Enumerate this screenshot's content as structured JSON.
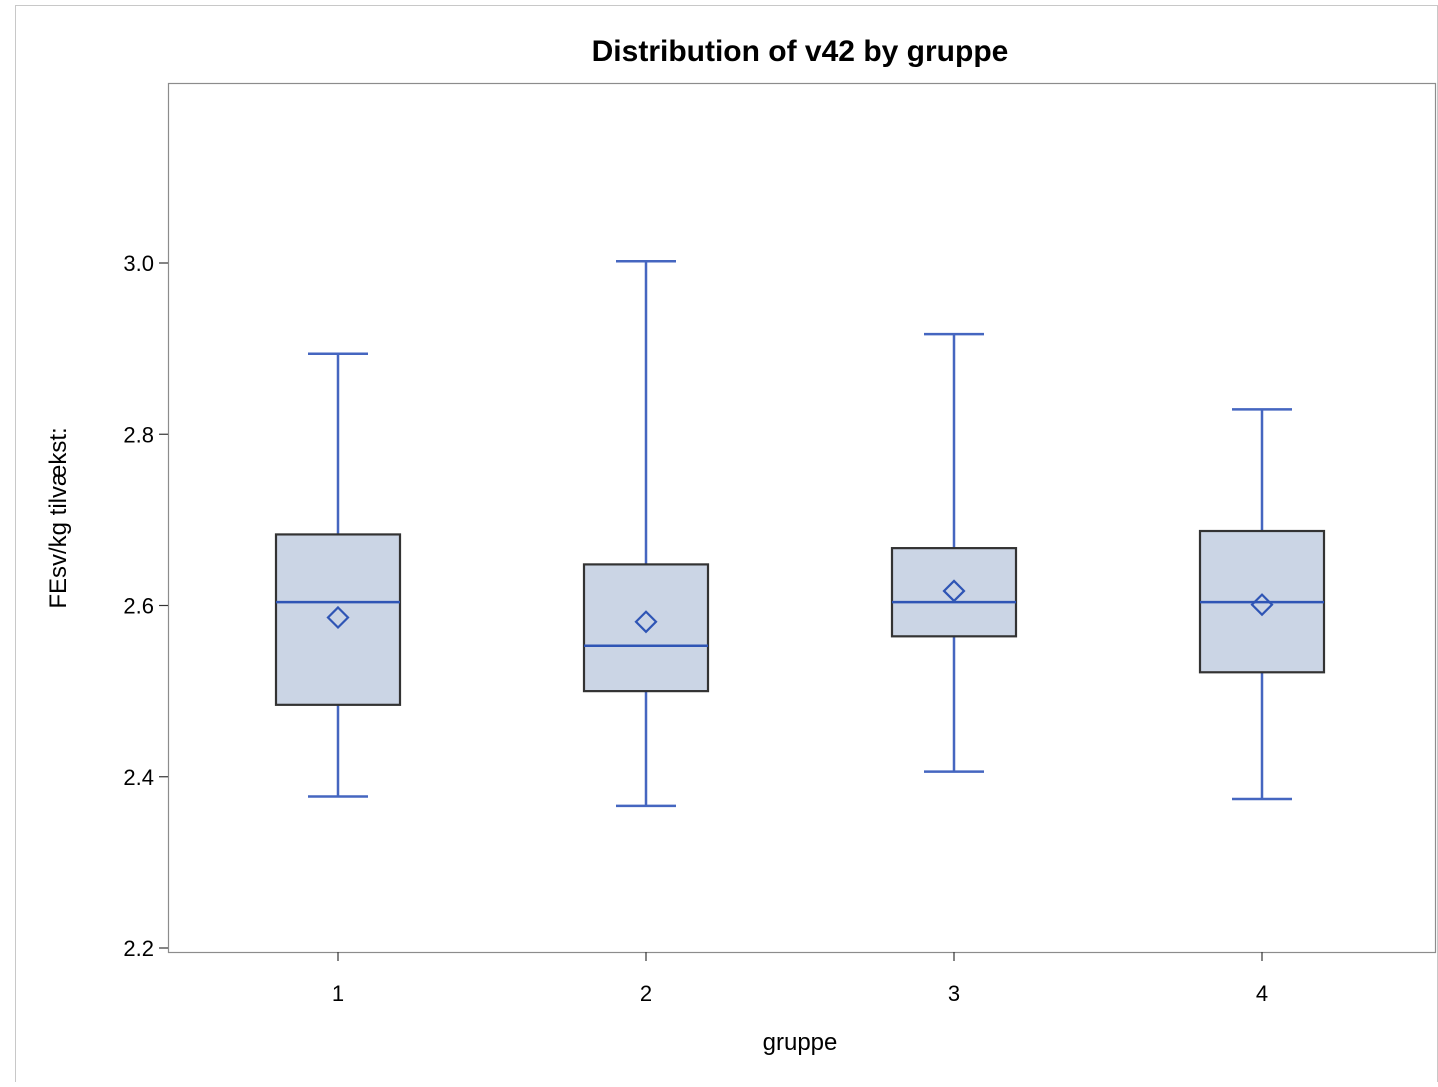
{
  "chart_data": {
    "type": "box",
    "title": "Distribution of v42 by gruppe",
    "xlabel": "gruppe",
    "ylabel": "FEsv/kg tilvækst:",
    "categories": [
      "1",
      "2",
      "3",
      "4"
    ],
    "ylim": [
      2.2,
      3.2
    ],
    "yticks": [
      "2.2",
      "2.4",
      "2.6",
      "2.8",
      "3.0"
    ],
    "boxes": [
      {
        "category": "1",
        "min": 2.377,
        "q1": 2.484,
        "median": 2.604,
        "q3": 2.683,
        "max": 2.894,
        "mean": 2.586
      },
      {
        "category": "2",
        "min": 2.366,
        "q1": 2.5,
        "median": 2.553,
        "q3": 2.648,
        "max": 3.002,
        "mean": 2.581
      },
      {
        "category": "3",
        "min": 2.406,
        "q1": 2.564,
        "median": 2.604,
        "q3": 2.667,
        "max": 2.917,
        "mean": 2.617
      },
      {
        "category": "4",
        "min": 2.374,
        "q1": 2.522,
        "median": 2.604,
        "q3": 2.687,
        "max": 2.829,
        "mean": 2.601
      }
    ],
    "grid": false,
    "legend": "none",
    "colors": {
      "box_fill": "#cbd5e5",
      "box_outline": "#333333",
      "whisker": "#4566c0",
      "median": "#2f55b5",
      "mean_marker": "#2f55b5",
      "frame": "#8c8c8c",
      "outer_border": "#c8c8c8"
    }
  }
}
